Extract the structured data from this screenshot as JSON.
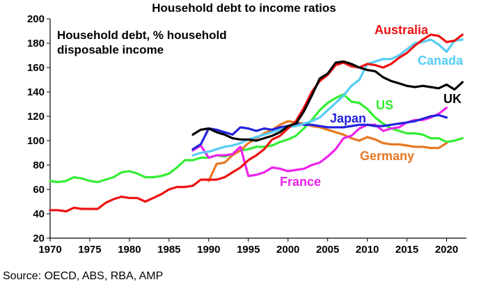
{
  "title": "Household debt to income ratios",
  "source": "Source: OECD, ABS, RBA, AMP",
  "chart_data": {
    "type": "line",
    "title": "Household debt to income ratios",
    "subtitle_lines": [
      "Household debt, % household",
      "disposable income"
    ],
    "xlabel": "",
    "ylabel": "",
    "xlim": [
      1970,
      2022.5
    ],
    "ylim": [
      20,
      200
    ],
    "x_ticks": [
      1970,
      1975,
      1980,
      1985,
      1990,
      1995,
      2000,
      2005,
      2010,
      2015,
      2020
    ],
    "y_ticks": [
      20,
      40,
      60,
      80,
      100,
      120,
      140,
      160,
      180,
      200
    ],
    "grid": false,
    "legend": "inline labels",
    "series": [
      {
        "name": "US",
        "color": "#33EE33",
        "x": [
          1970,
          1971,
          1972,
          1973,
          1974,
          1975,
          1976,
          1977,
          1978,
          1979,
          1980,
          1981,
          1982,
          1983,
          1984,
          1985,
          1986,
          1987,
          1988,
          1989,
          1990,
          1991,
          1992,
          1993,
          1994,
          1995,
          1996,
          1997,
          1998,
          1999,
          2000,
          2001,
          2002,
          2003,
          2004,
          2005,
          2006,
          2007,
          2008,
          2009,
          2010,
          2011,
          2012,
          2013,
          2014,
          2015,
          2016,
          2017,
          2018,
          2019,
          2020,
          2021,
          2022
        ],
        "y": [
          67,
          66,
          67,
          70,
          69,
          67,
          66,
          68,
          70,
          74,
          75,
          73,
          70,
          70,
          71,
          73,
          78,
          84,
          84,
          86,
          86,
          88,
          87,
          89,
          92,
          93,
          95,
          95,
          96,
          99,
          101,
          104,
          110,
          117,
          125,
          131,
          135,
          138,
          132,
          131,
          126,
          119,
          114,
          110,
          108,
          106,
          106,
          105,
          102,
          102,
          99,
          100,
          102
        ]
      },
      {
        "name": "Germany",
        "color": "#E87722",
        "x": [
          1990,
          1991,
          1992,
          1993,
          1994,
          1995,
          1996,
          1997,
          1998,
          1999,
          2000,
          2001,
          2002,
          2003,
          2004,
          2005,
          2006,
          2007,
          2008,
          2009,
          2010,
          2011,
          2012,
          2013,
          2014,
          2015,
          2016,
          2017,
          2018,
          2019,
          2020
        ],
        "y": [
          67,
          81,
          82,
          88,
          92,
          98,
          102,
          106,
          109,
          113,
          116,
          115,
          114,
          112,
          111,
          109,
          107,
          105,
          102,
          100,
          103,
          101,
          98,
          97,
          97,
          96,
          95,
          95,
          94,
          94,
          98
        ]
      },
      {
        "name": "France",
        "color": "#EE22EE",
        "x": [
          1988,
          1989,
          1990,
          1991,
          1992,
          1993,
          1994,
          1995,
          1996,
          1997,
          1998,
          1999,
          2000,
          2001,
          2002,
          2003,
          2004,
          2005,
          2006,
          2007,
          2008,
          2009,
          2010,
          2011,
          2012,
          2013,
          2014,
          2015,
          2016,
          2017,
          2018,
          2019,
          2020
        ],
        "y": [
          92,
          96,
          86,
          88,
          88,
          89,
          95,
          71,
          72,
          74,
          78,
          77,
          75,
          76,
          77,
          80,
          82,
          87,
          93,
          102,
          104,
          110,
          113,
          113,
          108,
          110,
          111,
          115,
          117,
          117,
          119,
          122,
          127
        ]
      },
      {
        "name": "Japan",
        "color": "#2222DD",
        "x": [
          1988,
          1989,
          1990,
          1991,
          1992,
          1993,
          1994,
          1995,
          1996,
          1997,
          1998,
          1999,
          2000,
          2001,
          2002,
          2003,
          2004,
          2005,
          2006,
          2007,
          2008,
          2009,
          2010,
          2011,
          2012,
          2013,
          2014,
          2015,
          2016,
          2017,
          2018,
          2019,
          2020
        ],
        "y": [
          93,
          97,
          110,
          109,
          107,
          105,
          111,
          110,
          108,
          110,
          109,
          111,
          112,
          114,
          113,
          113,
          112,
          111,
          111,
          111,
          112,
          113,
          113,
          112,
          112,
          113,
          114,
          115,
          116,
          118,
          120,
          121,
          119
        ]
      },
      {
        "name": "Canada",
        "color": "#55CCF5",
        "x": [
          1988,
          1989,
          1990,
          1991,
          1992,
          1993,
          1994,
          1995,
          1996,
          1997,
          1998,
          1999,
          2000,
          2001,
          2002,
          2003,
          2004,
          2005,
          2006,
          2007,
          2008,
          2009,
          2010,
          2011,
          2012,
          2013,
          2014,
          2015,
          2016,
          2017,
          2018,
          2019,
          2020,
          2021,
          2022
        ],
        "y": [
          88,
          90,
          91,
          93,
          95,
          96,
          98,
          101,
          103,
          105,
          107,
          109,
          111,
          112,
          114,
          116,
          119,
          125,
          131,
          137,
          145,
          150,
          163,
          165,
          167,
          167,
          170,
          175,
          180,
          181,
          183,
          179,
          173,
          182,
          183
        ]
      },
      {
        "name": "Australia",
        "color": "#EE1111",
        "x": [
          1970,
          1971,
          1972,
          1973,
          1974,
          1975,
          1976,
          1977,
          1978,
          1979,
          1980,
          1981,
          1982,
          1983,
          1984,
          1985,
          1986,
          1987,
          1988,
          1989,
          1990,
          1991,
          1992,
          1993,
          1994,
          1995,
          1996,
          1997,
          1998,
          1999,
          2000,
          2001,
          2002,
          2003,
          2004,
          2005,
          2006,
          2007,
          2008,
          2009,
          2010,
          2011,
          2012,
          2013,
          2014,
          2015,
          2016,
          2017,
          2018,
          2019,
          2020,
          2021,
          2022
        ],
        "y": [
          43,
          43,
          42,
          45,
          44,
          44,
          44,
          49,
          52,
          54,
          53,
          53,
          50,
          53,
          56,
          60,
          62,
          62,
          63,
          68,
          68,
          68,
          70,
          74,
          78,
          84,
          88,
          93,
          101,
          104,
          110,
          116,
          127,
          140,
          149,
          154,
          162,
          164,
          161,
          160,
          163,
          162,
          160,
          163,
          168,
          172,
          178,
          183,
          187,
          186,
          181,
          182,
          187
        ]
      },
      {
        "name": "UK",
        "color": "#000000",
        "x": [
          1988,
          1989,
          1990,
          1991,
          1992,
          1993,
          1994,
          1995,
          1996,
          1997,
          1998,
          1999,
          2000,
          2001,
          2002,
          2003,
          2004,
          2005,
          2006,
          2007,
          2008,
          2009,
          2010,
          2011,
          2012,
          2013,
          2014,
          2015,
          2016,
          2017,
          2018,
          2019,
          2020,
          2021,
          2022
        ],
        "y": [
          105,
          109,
          110,
          107,
          105,
          102,
          101,
          101,
          100,
          102,
          104,
          107,
          112,
          114,
          124,
          137,
          151,
          155,
          164,
          165,
          163,
          160,
          158,
          157,
          152,
          149,
          147,
          145,
          144,
          145,
          144,
          143,
          146,
          142,
          148
        ]
      }
    ]
  }
}
